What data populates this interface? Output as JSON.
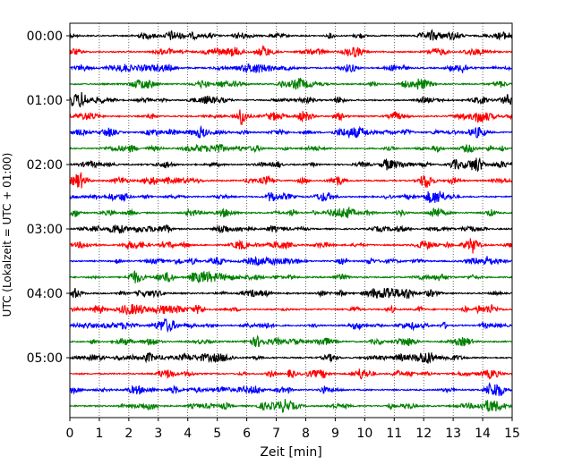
{
  "chart_data": {
    "type": "line",
    "title": "",
    "xlabel": "Zeit  [min]",
    "ylabel": "UTC (Lokalzeit = UTC + 01:00)",
    "xlim": [
      0,
      15
    ],
    "x_ticks": [
      "0",
      "1",
      "2",
      "3",
      "4",
      "5",
      "6",
      "7",
      "8",
      "9",
      "10",
      "11",
      "12",
      "13",
      "14",
      "15"
    ],
    "y_tick_labels": [
      "00:00",
      "01:00",
      "02:00",
      "03:00",
      "04:00",
      "05:00"
    ],
    "grid": "vertical dotted lines at each minute",
    "traces_per_hour": 4,
    "trace_interval_minutes": 15,
    "trace_count": 24,
    "color_cycle": [
      "#000000",
      "#ff0000",
      "#0000ff",
      "#008000"
    ],
    "series": [
      {
        "start": "00:00",
        "color": "#000000"
      },
      {
        "start": "00:15",
        "color": "#ff0000"
      },
      {
        "start": "00:30",
        "color": "#0000ff"
      },
      {
        "start": "00:45",
        "color": "#008000"
      },
      {
        "start": "01:00",
        "color": "#000000"
      },
      {
        "start": "01:15",
        "color": "#ff0000"
      },
      {
        "start": "01:30",
        "color": "#0000ff"
      },
      {
        "start": "01:45",
        "color": "#008000"
      },
      {
        "start": "02:00",
        "color": "#000000"
      },
      {
        "start": "02:15",
        "color": "#ff0000"
      },
      {
        "start": "02:30",
        "color": "#0000ff"
      },
      {
        "start": "02:45",
        "color": "#008000"
      },
      {
        "start": "03:00",
        "color": "#000000"
      },
      {
        "start": "03:15",
        "color": "#ff0000"
      },
      {
        "start": "03:30",
        "color": "#0000ff"
      },
      {
        "start": "03:45",
        "color": "#008000"
      },
      {
        "start": "04:00",
        "color": "#000000"
      },
      {
        "start": "04:15",
        "color": "#ff0000"
      },
      {
        "start": "04:30",
        "color": "#0000ff"
      },
      {
        "start": "04:45",
        "color": "#008000"
      },
      {
        "start": "05:00",
        "color": "#000000"
      },
      {
        "start": "05:15",
        "color": "#ff0000"
      },
      {
        "start": "05:30",
        "color": "#0000ff"
      },
      {
        "start": "05:45",
        "color": "#008000"
      }
    ]
  }
}
